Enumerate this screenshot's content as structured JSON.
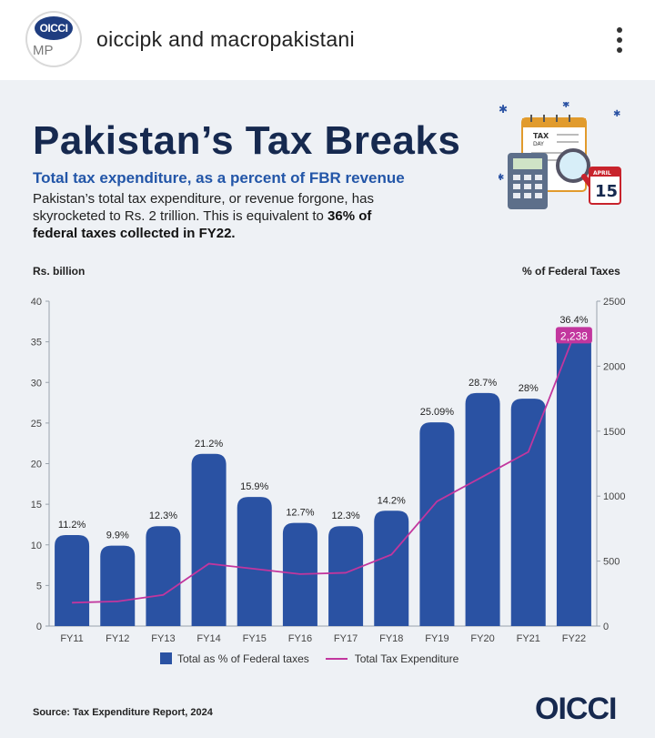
{
  "header": {
    "title": "oiccipk and macropakistani",
    "avatar_text": "OICCI",
    "avatar_mark": "MP"
  },
  "post": {
    "headline": "Pakistan’s Tax Breaks",
    "subtitle": "Total tax expenditure, as a percent of FBR revenue",
    "description_plain": "Pakistan’s total tax expenditure, or revenue forgone, has skyrocketed to Rs. 2 trillion. This is equivalent to ",
    "description_bold": "36% of federal taxes collected in FY22.",
    "illustration": {
      "label1": "TAX",
      "label2": "DAY",
      "month": "APRIL",
      "day": "15"
    },
    "source": "Source: Tax Expenditure Report, 2024",
    "logo": "OICCI"
  },
  "chart_data": {
    "type": "bar",
    "left_axis_title": "Rs. billion",
    "right_axis_title": "% of Federal Taxes",
    "categories": [
      "FY11",
      "FY12",
      "FY13",
      "FY14",
      "FY15",
      "FY16",
      "FY17",
      "FY18",
      "FY19",
      "FY20",
      "FY21",
      "FY22"
    ],
    "left_ticks": [
      "0",
      "5",
      "10",
      "15",
      "20",
      "25",
      "30",
      "35",
      "40"
    ],
    "right_ticks": [
      "0",
      "500",
      "1000",
      "1500",
      "2000",
      "2500"
    ],
    "left_ylim": [
      0,
      40
    ],
    "right_ylim": [
      0,
      2500
    ],
    "series": [
      {
        "name": "Total as % of Federal taxes",
        "axis": "left",
        "values": [
          11.2,
          9.9,
          12.3,
          21.2,
          15.9,
          12.7,
          12.3,
          14.2,
          25.09,
          28.7,
          28,
          36.4
        ],
        "labels": [
          "11.2%",
          "9.9%",
          "12.3%",
          "21.2%",
          "15.9%",
          "12.7%",
          "12.3%",
          "14.2%",
          "25.09%",
          "28.7%",
          "28%",
          "36.4%"
        ],
        "color": "#2a52a3"
      },
      {
        "name": "Total Tax Expenditure",
        "axis": "right",
        "values": [
          180,
          190,
          240,
          480,
          440,
          400,
          410,
          550,
          960,
          1150,
          1340,
          2238
        ],
        "color": "#c2369e"
      }
    ],
    "callout": "2,238",
    "legend_placement": "bottom",
    "grid": false
  }
}
